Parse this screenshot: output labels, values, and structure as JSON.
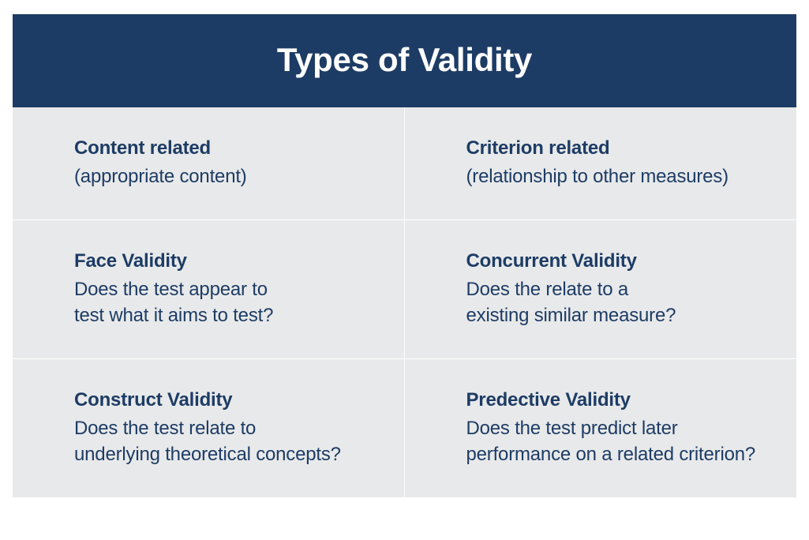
{
  "infographic": {
    "type": "infographic",
    "layout": "2x3-grid-with-header",
    "aspect_ratio": "1025x684",
    "colors": {
      "header_bg": "#1d3c65",
      "header_fg": "#ffffff",
      "cell_bg": "#e8e9ea",
      "divider": "#ffffff",
      "text": "#1d3c65"
    },
    "typography": {
      "header_fontsize_pt": 32,
      "title_fontsize_pt": 18,
      "desc_fontsize_pt": 18,
      "font_family": "Segoe UI / Myriad Pro"
    },
    "header": {
      "title": "Types of Validity"
    },
    "cells": {
      "r1c1": {
        "title": "Content related",
        "desc": "(appropriate content)"
      },
      "r1c2": {
        "title": "Criterion related",
        "desc": "(relationship to other measures)"
      },
      "r2c1": {
        "title": " Face Validity",
        "desc": "Does the test appear to\ntest what it aims to test?"
      },
      "r2c2": {
        "title": "Concurrent Validity",
        "desc": "Does the relate to a\nexisting similar measure?"
      },
      "r3c1": {
        "title": "Construct Validity",
        "desc": "Does the test relate to\nunderlying theoretical concepts?"
      },
      "r3c2": {
        "title": "Predective Validity",
        "desc": "Does the test predict later\nperformance on a related criterion?"
      }
    }
  }
}
